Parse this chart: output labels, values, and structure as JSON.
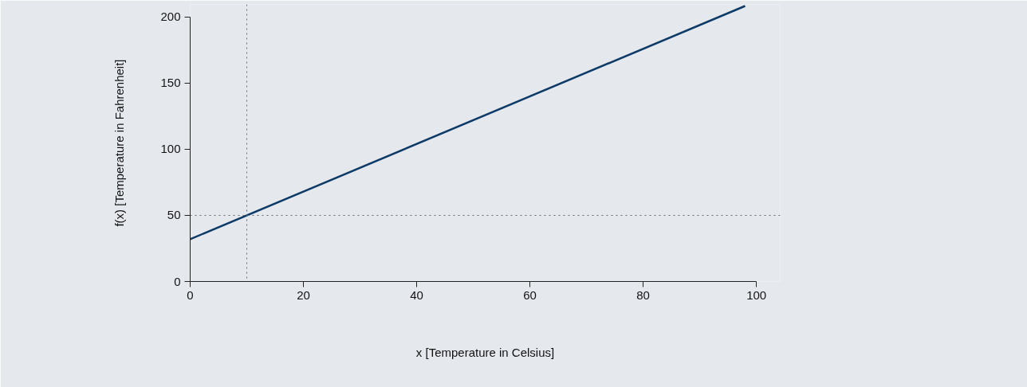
{
  "chart_data": {
    "type": "line",
    "xlabel": "x [Temperature in Celsius]",
    "ylabel": "f(x) [Temperature in Fahrenheit]",
    "x": [
      0,
      98
    ],
    "series": [
      {
        "color": "#0d3a66",
        "values": [
          32,
          208.4
        ]
      }
    ],
    "xlim": [
      0,
      104.2
    ],
    "ylim": [
      0,
      209.6
    ],
    "xticks": [
      0,
      20,
      40,
      60,
      80,
      100
    ],
    "yticks": [
      0,
      50,
      100,
      150,
      200
    ],
    "ref_lines": [
      {
        "axis": "x",
        "value": 10,
        "color": "#666666",
        "line_style": "dotted"
      },
      {
        "axis": "y",
        "value": 50,
        "color": "#666666",
        "line_style": "dotted"
      }
    ],
    "grid": false
  }
}
